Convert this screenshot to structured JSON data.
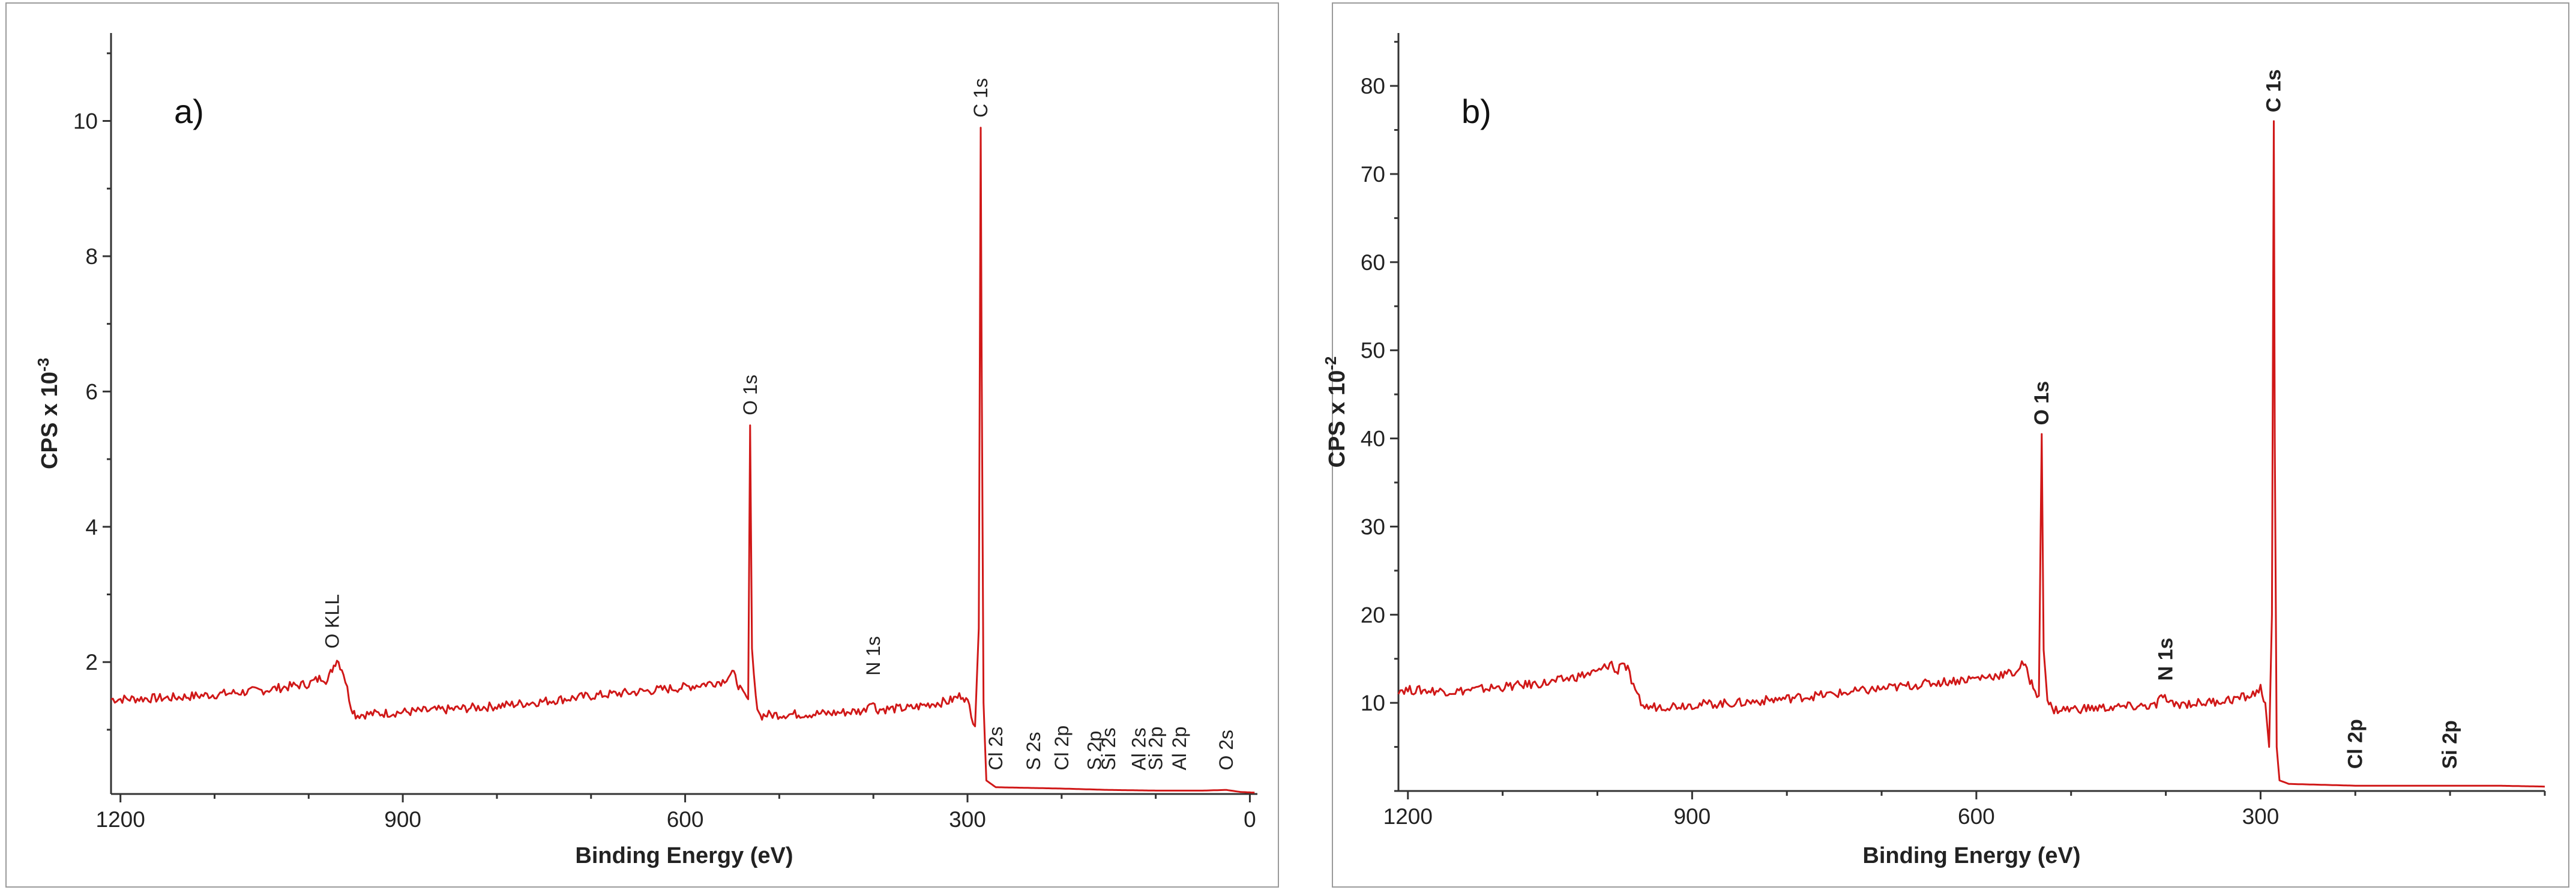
{
  "chart_data": [
    {
      "type": "line",
      "panel_label": "a)",
      "xlabel": "Binding Energy (eV)",
      "ylabel_prefix": "CPS x 10",
      "ylabel_exponent": "-3",
      "xlim": [
        1210,
        -8
      ],
      "ylim": [
        0.05,
        11.3
      ],
      "x_ticks": [
        1200,
        900,
        600,
        300,
        0
      ],
      "y_ticks": [
        2,
        4,
        6,
        8,
        10
      ],
      "grid": false,
      "color": "#d01818",
      "series": [
        {
          "points": [
            [
              1210,
              1.45
            ],
            [
              1150,
              1.47
            ],
            [
              1100,
              1.52
            ],
            [
              1050,
              1.58
            ],
            [
              1000,
              1.68
            ],
            [
              985,
              1.78
            ],
            [
              980,
              1.72
            ],
            [
              975,
              1.9
            ],
            [
              970,
              2.05
            ],
            [
              963,
              1.85
            ],
            [
              955,
              1.35
            ],
            [
              950,
              1.22
            ],
            [
              900,
              1.26
            ],
            [
              850,
              1.3
            ],
            [
              800,
              1.35
            ],
            [
              750,
              1.42
            ],
            [
              700,
              1.5
            ],
            [
              650,
              1.56
            ],
            [
              600,
              1.63
            ],
            [
              560,
              1.72
            ],
            [
              550,
              1.85
            ],
            [
              545,
              1.72
            ],
            [
              540,
              1.55
            ],
            [
              533,
              1.45
            ],
            [
              531,
              5.5
            ],
            [
              529,
              2.2
            ],
            [
              525,
              1.45
            ],
            [
              520,
              1.2
            ],
            [
              515,
              1.22
            ],
            [
              450,
              1.24
            ],
            [
              410,
              1.28
            ],
            [
              402,
              1.45
            ],
            [
              397,
              1.3
            ],
            [
              360,
              1.32
            ],
            [
              340,
              1.38
            ],
            [
              320,
              1.42
            ],
            [
              305,
              1.52
            ],
            [
              298,
              1.35
            ],
            [
              292,
              1.05
            ],
            [
              288,
              2.5
            ],
            [
              286,
              9.9
            ],
            [
              285,
              6.6
            ],
            [
              283,
              1.4
            ],
            [
              280,
              0.25
            ],
            [
              270,
              0.15
            ],
            [
              200,
              0.13
            ],
            [
              150,
              0.11
            ],
            [
              100,
              0.1
            ],
            [
              50,
              0.1
            ],
            [
              25,
              0.11
            ],
            [
              10,
              0.08
            ],
            [
              -5,
              0.07
            ]
          ]
        }
      ],
      "annotations": [
        {
          "x": 975,
          "y": 2.2,
          "text": "O KLL"
        },
        {
          "x": 531,
          "y": 5.65,
          "text": "O 1s"
        },
        {
          "x": 400,
          "y": 1.8,
          "text": "N 1s"
        },
        {
          "x": 286,
          "y": 10.05,
          "text": "C 1s"
        },
        {
          "x": 270,
          "y": 0.4,
          "text": "Cl 2s"
        },
        {
          "x": 230,
          "y": 0.4,
          "text": "S 2s"
        },
        {
          "x": 200,
          "y": 0.4,
          "text": "Cl 2p"
        },
        {
          "x": 165,
          "y": 0.4,
          "text": "S 2p"
        },
        {
          "x": 150,
          "y": 0.4,
          "text": "Si 2s"
        },
        {
          "x": 118,
          "y": 0.4,
          "text": "Al 2s"
        },
        {
          "x": 100,
          "y": 0.4,
          "text": "Si 2p"
        },
        {
          "x": 75,
          "y": 0.4,
          "text": "Al 2p"
        },
        {
          "x": 25,
          "y": 0.4,
          "text": "O 2s"
        }
      ]
    },
    {
      "type": "line",
      "panel_label": "b)",
      "xlabel": "Binding Energy (eV)",
      "ylabel_prefix": "CPS x 10",
      "ylabel_exponent": "-2",
      "xlim": [
        1210,
        0
      ],
      "ylim": [
        0,
        86
      ],
      "x_ticks": [
        1200,
        900,
        600,
        300
      ],
      "y_ticks": [
        10,
        20,
        30,
        40,
        50,
        60,
        70,
        80
      ],
      "grid": false,
      "color": "#d01818",
      "series": [
        {
          "points": [
            [
              1210,
              11.5
            ],
            [
              1150,
              11.3
            ],
            [
              1100,
              11.8
            ],
            [
              1050,
              12.3
            ],
            [
              1000,
              13.5
            ],
            [
              985,
              14.5
            ],
            [
              980,
              13.2
            ],
            [
              975,
              14.8
            ],
            [
              968,
              13.8
            ],
            [
              960,
              11
            ],
            [
              950,
              9.5
            ],
            [
              900,
              9.8
            ],
            [
              850,
              10
            ],
            [
              800,
              10.5
            ],
            [
              750,
              11
            ],
            [
              700,
              11.6
            ],
            [
              650,
              12.2
            ],
            [
              600,
              12.8
            ],
            [
              560,
              13.4
            ],
            [
              550,
              14.5
            ],
            [
              545,
              13
            ],
            [
              540,
              11.8
            ],
            [
              534,
              10.8
            ],
            [
              531,
              40.5
            ],
            [
              529,
              16
            ],
            [
              525,
              10.5
            ],
            [
              520,
              9.2
            ],
            [
              450,
              9.5
            ],
            [
              410,
              9.7
            ],
            [
              403,
              11
            ],
            [
              397,
              9.8
            ],
            [
              360,
              10
            ],
            [
              330,
              10.4
            ],
            [
              310,
              10.8
            ],
            [
              300,
              11.6
            ],
            [
              295,
              10
            ],
            [
              291,
              5
            ],
            [
              288,
              20
            ],
            [
              286,
              76
            ],
            [
              285,
              40
            ],
            [
              283,
              5
            ],
            [
              280,
              1.2
            ],
            [
              270,
              0.8
            ],
            [
              200,
              0.6
            ],
            [
              100,
              0.6
            ],
            [
              50,
              0.6
            ],
            [
              0,
              0.5
            ]
          ]
        }
      ],
      "annotations": [
        {
          "x": 531,
          "y": 41.5,
          "text": "O 1s"
        },
        {
          "x": 400,
          "y": 12.5,
          "text": "N 1s"
        },
        {
          "x": 286,
          "y": 77,
          "text": "C 1s"
        },
        {
          "x": 200,
          "y": 2.5,
          "text": "Cl 2p"
        },
        {
          "x": 100,
          "y": 2.5,
          "text": "Si 2p"
        }
      ]
    }
  ]
}
